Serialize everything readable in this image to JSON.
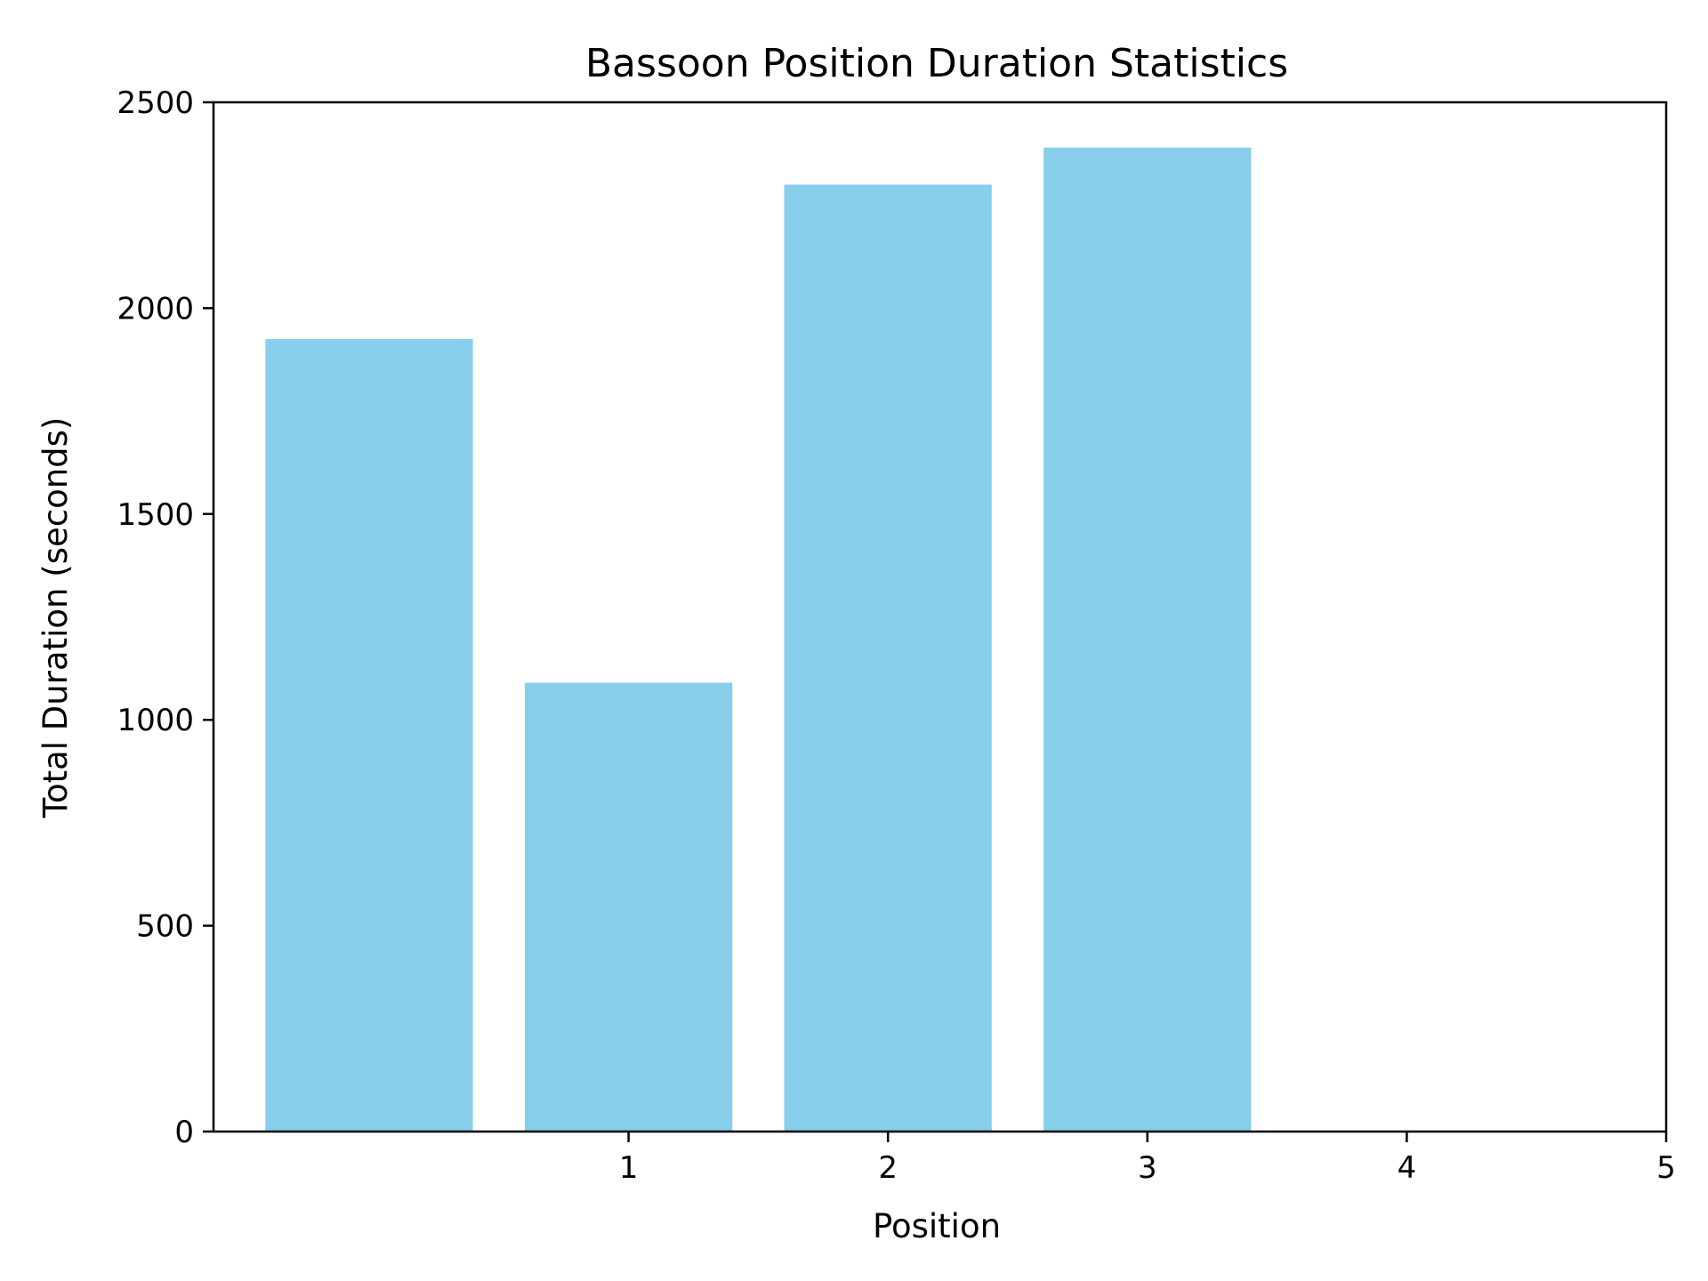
{
  "chart_data": {
    "type": "bar",
    "title": "Bassoon Position Duration Statistics",
    "xlabel": "Position",
    "ylabel": "Total Duration (seconds)",
    "x": [
      0,
      1,
      2,
      3
    ],
    "values": [
      1925,
      1090,
      2300,
      2390
    ],
    "bar_width": 0.8,
    "xlim": [
      -0.6,
      5
    ],
    "ylim": [
      0,
      2500
    ],
    "xticks": [
      1,
      2,
      3,
      4,
      5
    ],
    "xtick_labels": [
      "1",
      "2",
      "3",
      "4",
      "5"
    ],
    "yticks": [
      0,
      500,
      1000,
      1500,
      2000,
      2500
    ],
    "ytick_labels": [
      "0",
      "500",
      "1000",
      "1500",
      "2000",
      "2500"
    ],
    "grid": false,
    "legend": "none",
    "colors": {
      "bar": "#87CEEB",
      "axis": "#000000",
      "background": "#ffffff"
    }
  }
}
